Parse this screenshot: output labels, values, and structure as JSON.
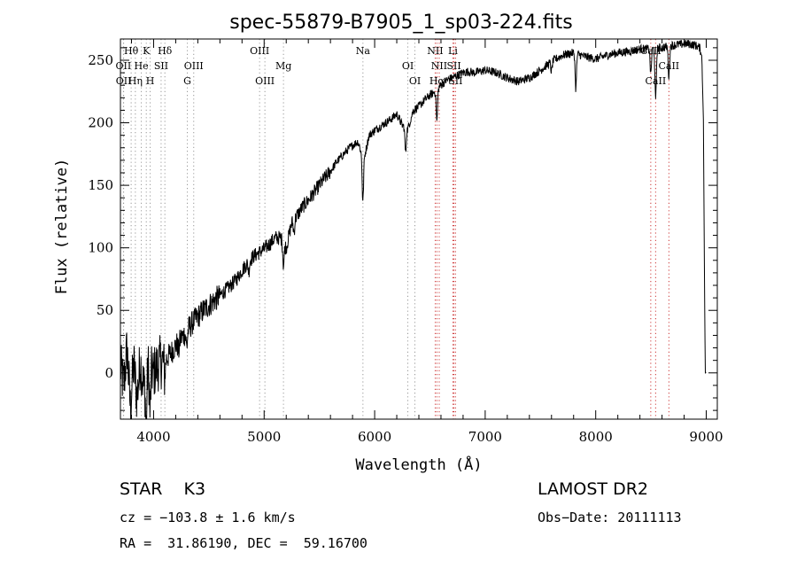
{
  "chart_data": {
    "type": "line",
    "title": "spec-55879-B7905_1_sp03-224.fits",
    "xlabel": "Wavelength (Å)",
    "ylabel": "Flux (relative)",
    "xlim": [
      3700,
      9100
    ],
    "ylim": [
      -37,
      267
    ],
    "xticks": [
      4000,
      5000,
      6000,
      7000,
      8000,
      9000
    ],
    "yticks": [
      0,
      50,
      100,
      150,
      200,
      250
    ],
    "minor_xtick_step": 200,
    "minor_ytick_step": 10,
    "grid": false,
    "spectrum": [
      [
        3700,
        5
      ],
      [
        3730,
        -10
      ],
      [
        3760,
        20
      ],
      [
        3790,
        -28
      ],
      [
        3820,
        8
      ],
      [
        3850,
        -20
      ],
      [
        3880,
        10
      ],
      [
        3910,
        -12
      ],
      [
        3950,
        5
      ],
      [
        4000,
        0
      ],
      [
        4050,
        8
      ],
      [
        4100,
        10
      ],
      [
        4150,
        15
      ],
      [
        4200,
        22
      ],
      [
        4250,
        28
      ],
      [
        4300,
        33
      ],
      [
        4350,
        40
      ],
      [
        4400,
        45
      ],
      [
        4450,
        50
      ],
      [
        4500,
        54
      ],
      [
        4550,
        58
      ],
      [
        4600,
        62
      ],
      [
        4650,
        66
      ],
      [
        4700,
        70
      ],
      [
        4750,
        75
      ],
      [
        4800,
        82
      ],
      [
        4850,
        88
      ],
      [
        4900,
        93
      ],
      [
        4950,
        96
      ],
      [
        5000,
        99
      ],
      [
        5050,
        103
      ],
      [
        5100,
        108
      ],
      [
        5150,
        108
      ],
      [
        5200,
        100
      ],
      [
        5250,
        120
      ],
      [
        5300,
        126
      ],
      [
        5350,
        133
      ],
      [
        5400,
        138
      ],
      [
        5450,
        144
      ],
      [
        5500,
        150
      ],
      [
        5550,
        156
      ],
      [
        5600,
        161
      ],
      [
        5650,
        168
      ],
      [
        5700,
        173
      ],
      [
        5750,
        178
      ],
      [
        5800,
        182
      ],
      [
        5850,
        185
      ],
      [
        5900,
        170
      ],
      [
        5950,
        190
      ],
      [
        6000,
        194
      ],
      [
        6050,
        197
      ],
      [
        6100,
        200
      ],
      [
        6150,
        203
      ],
      [
        6200,
        207
      ],
      [
        6250,
        198
      ],
      [
        6300,
        195
      ],
      [
        6350,
        210
      ],
      [
        6400,
        213
      ],
      [
        6450,
        218
      ],
      [
        6500,
        222
      ],
      [
        6550,
        225
      ],
      [
        6600,
        230
      ],
      [
        6650,
        234
      ],
      [
        6700,
        236
      ],
      [
        6750,
        238
      ],
      [
        6800,
        240
      ],
      [
        6850,
        241
      ],
      [
        6900,
        240
      ],
      [
        6950,
        241
      ],
      [
        7000,
        242
      ],
      [
        7100,
        240
      ],
      [
        7200,
        236
      ],
      [
        7300,
        233
      ],
      [
        7400,
        236
      ],
      [
        7500,
        242
      ],
      [
        7600,
        249
      ],
      [
        7700,
        254
      ],
      [
        7800,
        256
      ],
      [
        7900,
        253
      ],
      [
        8000,
        251
      ],
      [
        8100,
        254
      ],
      [
        8200,
        256
      ],
      [
        8300,
        257
      ],
      [
        8400,
        259
      ],
      [
        8500,
        259
      ],
      [
        8600,
        260
      ],
      [
        8700,
        262
      ],
      [
        8800,
        263
      ],
      [
        8850,
        263
      ],
      [
        8900,
        262
      ],
      [
        8940,
        260
      ],
      [
        8960,
        253
      ],
      [
        8975,
        200
      ],
      [
        8985,
        60
      ],
      [
        8992,
        0
      ],
      [
        9000,
        0
      ]
    ],
    "absorption_features": [
      {
        "x": 3933,
        "depth": 40
      },
      {
        "x": 3968,
        "depth": 35
      },
      {
        "x": 4101,
        "depth": 12
      },
      {
        "x": 4226,
        "depth": 8
      },
      {
        "x": 4300,
        "depth": 12
      },
      {
        "x": 4861,
        "depth": 8
      },
      {
        "x": 5175,
        "depth": 18
      },
      {
        "x": 5270,
        "depth": 10
      },
      {
        "x": 5893,
        "depth": 35
      },
      {
        "x": 6280,
        "depth": 20
      },
      {
        "x": 6563,
        "depth": 25
      },
      {
        "x": 7600,
        "depth": 8
      },
      {
        "x": 7820,
        "depth": 28
      },
      {
        "x": 8498,
        "depth": 20
      },
      {
        "x": 8542,
        "depth": 42
      },
      {
        "x": 8662,
        "depth": 25
      }
    ],
    "spectral_lines": [
      {
        "label": "Hθ",
        "x": 3797,
        "color": "#999999",
        "row": 0
      },
      {
        "label": "OII",
        "x": 3727,
        "color": "#999999",
        "row": 1
      },
      {
        "label": "OII",
        "x": 3729,
        "color": "#999999",
        "row": 2
      },
      {
        "label": "K",
        "x": 3934,
        "color": "#999999",
        "row": 0
      },
      {
        "label": "He",
        "x": 3889,
        "color": "#999999",
        "row": 1
      },
      {
        "label": "Hη",
        "x": 3835,
        "color": "#999999",
        "row": 2
      },
      {
        "label": "H",
        "x": 3969,
        "color": "#999999",
        "row": 2
      },
      {
        "label": "SII",
        "x": 4068,
        "color": "#999999",
        "row": 1
      },
      {
        "label": "Hδ",
        "x": 4102,
        "color": "#999999",
        "row": 0
      },
      {
        "label": "OIII",
        "x": 4363,
        "color": "#999999",
        "row": 1
      },
      {
        "label": "G",
        "x": 4305,
        "color": "#999999",
        "row": 2
      },
      {
        "label": "OIII",
        "x": 4959,
        "color": "#999999",
        "row": 0
      },
      {
        "label": "OIII",
        "x": 5007,
        "color": "#999999",
        "row": 2
      },
      {
        "label": "Mg",
        "x": 5175,
        "color": "#999999",
        "row": 1
      },
      {
        "label": "Na",
        "x": 5894,
        "color": "#999999",
        "row": 0
      },
      {
        "label": "OI",
        "x": 6300,
        "color": "#999999",
        "row": 1
      },
      {
        "label": "OI",
        "x": 6364,
        "color": "#999999",
        "row": 2
      },
      {
        "label": "NII",
        "x": 6548,
        "color": "#cc3333",
        "row": 0
      },
      {
        "label": "NII",
        "x": 6584,
        "color": "#cc3333",
        "row": 1
      },
      {
        "label": "Hα",
        "x": 6563,
        "color": "#cc3333",
        "row": 2
      },
      {
        "label": "Li",
        "x": 6708,
        "color": "#cc3333",
        "row": 0
      },
      {
        "label": "SII",
        "x": 6717,
        "color": "#cc3333",
        "row": 1
      },
      {
        "label": "SII",
        "x": 6731,
        "color": "#cc3333",
        "row": 2
      },
      {
        "label": "CaII",
        "x": 8498,
        "color": "#cc3333",
        "row": 0
      },
      {
        "label": "CaII",
        "x": 8662,
        "color": "#cc3333",
        "row": 1
      },
      {
        "label": "CaII",
        "x": 8542,
        "color": "#cc3333",
        "row": 2
      }
    ]
  },
  "info": {
    "class_line": "STAR    K3",
    "survey": "LAMOST DR2",
    "cz": "cz = −103.8 ± 1.6 km/s",
    "obs_date": "Obs−Date: 20111113",
    "radec": "RA =  31.86190, DEC =  59.16700"
  }
}
